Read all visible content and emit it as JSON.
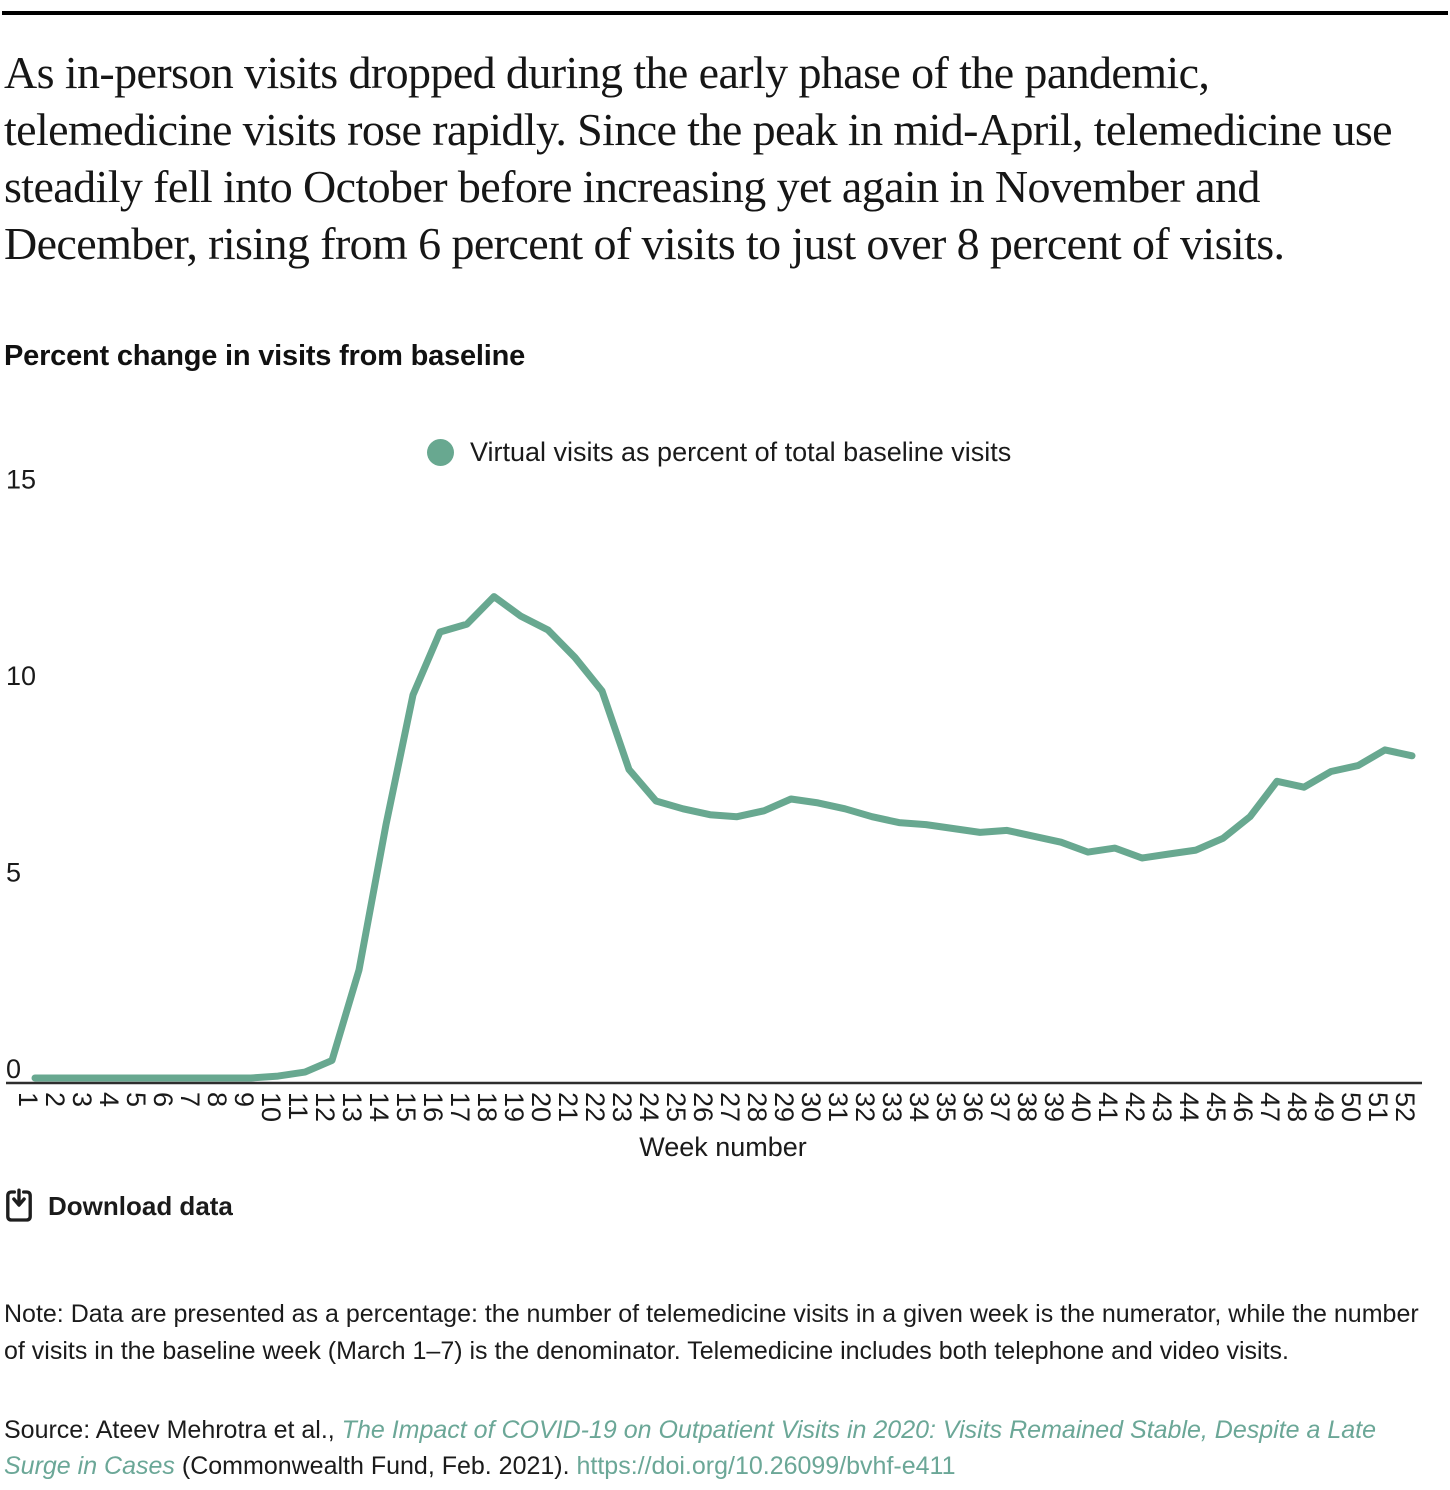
{
  "page": {
    "headline": "As in-person visits dropped during the early phase of the pandemic, telemedicine visits rose rapidly. Since the peak in mid-April, telemedicine use steadily fell into October before increasing yet again in November and December, rising from 6 percent of visits to just over 8 percent of visits.",
    "chart_title": "Percent change in visits from baseline"
  },
  "colors": {
    "accent_green": "#68a890",
    "link_green": "#6ba797",
    "axis": "#2e2e2e",
    "text": "#1a1a1a"
  },
  "legend": {
    "marker": "circle-icon",
    "label": "Virtual visits as percent of total baseline visits"
  },
  "chart_data": {
    "type": "line",
    "title": "Percent change in visits from baseline",
    "xlabel": "Week number",
    "ylabel": "",
    "ylim": [
      0,
      15
    ],
    "yticks": [
      0,
      5,
      10,
      15
    ],
    "grid": false,
    "legend_position": "top-center",
    "x": [
      1,
      2,
      3,
      4,
      5,
      6,
      7,
      8,
      9,
      10,
      11,
      12,
      13,
      14,
      15,
      16,
      17,
      18,
      19,
      20,
      21,
      22,
      23,
      24,
      25,
      26,
      27,
      28,
      29,
      30,
      31,
      32,
      33,
      34,
      35,
      36,
      37,
      38,
      39,
      40,
      41,
      42,
      43,
      44,
      45,
      46,
      47,
      48,
      49,
      50,
      51,
      52
    ],
    "series": [
      {
        "name": "Virtual visits as percent of total baseline visits",
        "color": "#68a890",
        "values": [
          0.05,
          0.05,
          0.05,
          0.05,
          0.05,
          0.05,
          0.05,
          0.05,
          0.05,
          0.1,
          0.2,
          0.5,
          2.8,
          6.5,
          9.8,
          11.4,
          11.6,
          12.3,
          11.8,
          11.45,
          10.75,
          9.9,
          7.9,
          7.1,
          6.9,
          6.75,
          6.7,
          6.85,
          7.15,
          7.05,
          6.9,
          6.7,
          6.55,
          6.5,
          6.4,
          6.3,
          6.35,
          6.2,
          6.05,
          5.8,
          5.9,
          5.65,
          5.75,
          5.85,
          6.15,
          6.7,
          7.6,
          7.45,
          7.85,
          8.0,
          8.4,
          8.25
        ]
      }
    ]
  },
  "download": {
    "icon": "download-icon",
    "label": "Download data"
  },
  "note": {
    "text": "Note: Data are presented as a percentage: the number of telemedicine visits in a given week is the numerator, while the number of visits in the baseline week (March 1–7) is the denominator. Telemedicine includes both telephone and video visits."
  },
  "source": {
    "prefix": "Source: Ateev Mehrotra et al., ",
    "link_title": "The Impact of COVID-19 on Outpatient Visits in 2020: Visits Remained Stable, Despite a Late Surge in Cases",
    "suffix": " (Commonwealth Fund, Feb. 2021). ",
    "url": "https://doi.org/10.26099/bvhf-e411"
  }
}
